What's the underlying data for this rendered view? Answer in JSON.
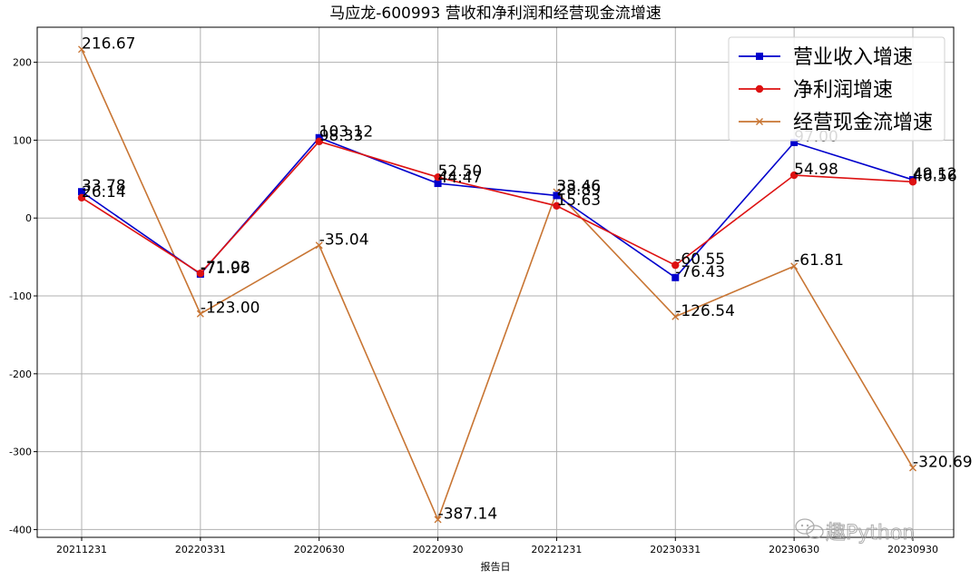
{
  "chart_data": {
    "type": "line",
    "title": "马应龙-600993 营收和净利润和经营现金流增速",
    "xlabel": "报告日",
    "ylabel": "",
    "categories": [
      "20211231",
      "20220331",
      "20220630",
      "20220930",
      "20221231",
      "20230331",
      "20230630",
      "20230930"
    ],
    "ylim": [
      -410,
      245
    ],
    "yticks": [
      200,
      100,
      0,
      -100,
      -200,
      -300,
      -400
    ],
    "grid": true,
    "legend_position": "top-right",
    "series": [
      {
        "name": "营业收入增速",
        "color": "#0000cc",
        "marker": "square",
        "values": [
          33.78,
          -71.96,
          103.12,
          44.47,
          28.89,
          -76.43,
          97.0,
          49.12
        ]
      },
      {
        "name": "净利润增速",
        "color": "#dd1111",
        "marker": "circle",
        "values": [
          26.14,
          -71.03,
          98.33,
          52.5,
          15.63,
          -60.55,
          54.98,
          46.56
        ]
      },
      {
        "name": "经营现金流增速",
        "color": "#c87533",
        "marker": "x",
        "values": [
          216.67,
          -123.0,
          -35.04,
          -387.14,
          33.46,
          -126.54,
          -61.81,
          -320.69
        ]
      }
    ]
  },
  "watermark": {
    "text": "趣Python",
    "icon": "wechat-icon"
  }
}
